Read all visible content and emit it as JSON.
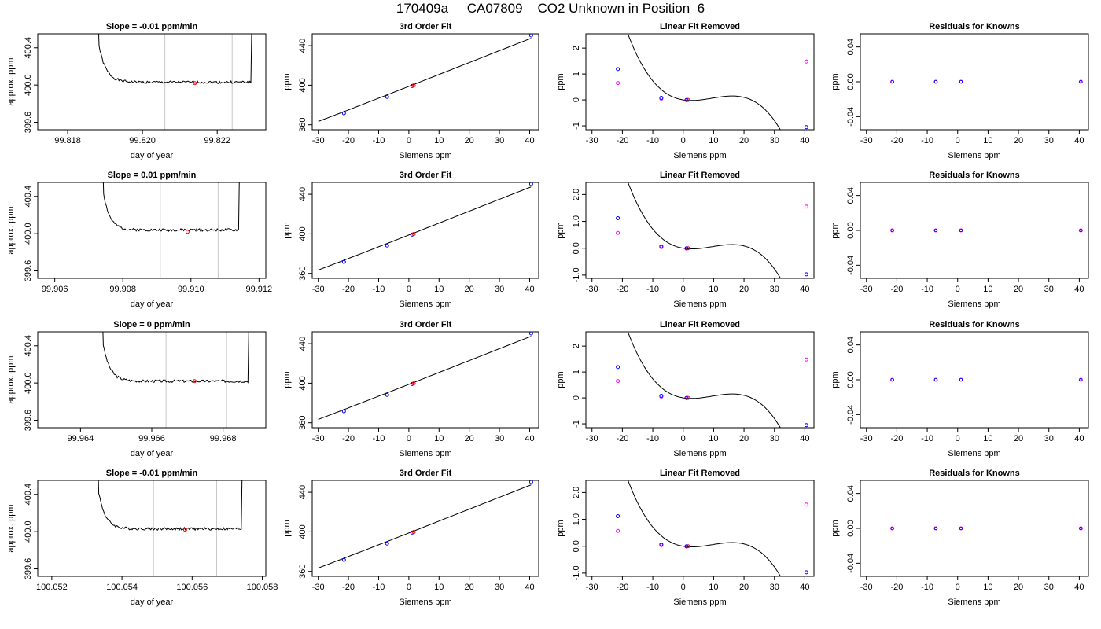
{
  "title": "170409a     CA07809    CO2 Unknown in Position  6",
  "colors": {
    "line": "#000000",
    "known": "#0000ff",
    "unknown": "#ff0000",
    "resid": "#ff00ff",
    "cursor": "#c8c8c8"
  },
  "chart_data": [
    {
      "type": "line",
      "title": "Slope =  -0.01  ppm/min",
      "xlabel": "day of year",
      "ylabel": "approx. ppm",
      "xlim": [
        99.8172,
        99.8233
      ],
      "ylim": [
        399.52,
        400.55
      ],
      "xticks": [
        99.818,
        99.82,
        99.822
      ],
      "xtick_labels": [
        "99.818",
        "99.820",
        "99.822"
      ],
      "yticks": [
        399.6,
        400.0,
        400.4
      ],
      "ytick_labels": [
        "399.6",
        "400.0",
        "400.4"
      ],
      "trace": {
        "x_start": 99.8187,
        "x_end": 99.8229,
        "level": 400.03,
        "seed": 1
      },
      "vlines": [
        99.8206,
        99.8224
      ],
      "marker": {
        "x": 99.8214,
        "y": 400.02
      }
    },
    {
      "type": "scatter",
      "title": "3rd Order Fit",
      "xlabel": "Siemens ppm",
      "ylabel": "ppm",
      "xlim": [
        -32,
        43
      ],
      "ylim": [
        355,
        452
      ],
      "xticks": [
        -30,
        -20,
        -10,
        0,
        10,
        20,
        30,
        40
      ],
      "xtick_labels": [
        "-30",
        "-20",
        "-10",
        "0",
        "10",
        "20",
        "30",
        "40"
      ],
      "yticks": [
        360,
        400,
        440
      ],
      "ytick_labels": [
        "360",
        "400",
        "440"
      ],
      "curve": {
        "intercept": 398.85,
        "slope": 1.2,
        "coeffs": [
          0,
          0,
          0.00036,
          -8.3e-06
        ],
        "x_from": -30,
        "x_to": 40.5
      },
      "knowns": [
        {
          "x": -21.5,
          "y": 371.6
        },
        {
          "x": -7.2,
          "y": 388.2
        },
        {
          "x": 1.1,
          "y": 399.2
        },
        {
          "x": 40.5,
          "y": 450.4
        }
      ],
      "unknown": {
        "x": 1.6,
        "y": 399.8
      }
    },
    {
      "type": "scatter",
      "title": "Linear Fit Removed",
      "xlabel": "Siemens ppm",
      "ylabel": "ppm",
      "xlim": [
        -32,
        43
      ],
      "ylim": [
        -1.15,
        2.55
      ],
      "xticks": [
        -30,
        -20,
        -10,
        0,
        10,
        20,
        30,
        40
      ],
      "xtick_labels": [
        "-30",
        "-20",
        "-10",
        "0",
        "10",
        "20",
        "30",
        "40"
      ],
      "yticks": [
        -1,
        0,
        1,
        2
      ],
      "ytick_labels": [
        "-1",
        "0",
        "1",
        "2"
      ],
      "curve": {
        "intercept": 0,
        "slope": -0.0185,
        "coeffs": [
          0,
          0,
          0.00405,
          -0.000144
        ],
        "x_from": -30,
        "x_to": 41
      },
      "knowns": [
        {
          "x": -21.5,
          "y": 1.19
        },
        {
          "x": -7.2,
          "y": 0.08
        },
        {
          "x": 1.1,
          "y": 0.0
        },
        {
          "x": 40.5,
          "y": -1.05
        }
      ],
      "unknown": {
        "x": 1.6,
        "y": 0.0
      },
      "resid_points": [
        {
          "x": -21.5,
          "y": 0.65
        },
        {
          "x": -7.2,
          "y": 0.05
        },
        {
          "x": 1.1,
          "y": -0.01
        },
        {
          "x": 40.5,
          "y": 1.48
        }
      ]
    },
    {
      "type": "scatter",
      "title": "Residuals for Knowns",
      "xlabel": "Siemens ppm",
      "ylabel": "ppm",
      "xlim": [
        -32,
        43
      ],
      "ylim": [
        -0.055,
        0.055
      ],
      "xticks": [
        -30,
        -20,
        -10,
        0,
        10,
        20,
        30,
        40
      ],
      "xtick_labels": [
        "-30",
        "-20",
        "-10",
        "0",
        "10",
        "20",
        "30",
        "40"
      ],
      "yticks": [
        -0.04,
        0,
        0.04
      ],
      "ytick_labels": [
        "-0.04",
        "0.00",
        "0.04"
      ],
      "resid_points": [
        {
          "x": -21.5,
          "y": 0
        },
        {
          "x": -7.2,
          "y": 0
        },
        {
          "x": 1.1,
          "y": 0
        },
        {
          "x": 40.5,
          "y": 0
        }
      ]
    },
    {
      "type": "line",
      "title": "Slope =  0.01  ppm/min",
      "xlabel": "day of year",
      "ylabel": "approx. ppm",
      "xlim": [
        99.9055,
        99.9122
      ],
      "ylim": [
        399.52,
        400.55
      ],
      "xticks": [
        99.906,
        99.908,
        99.91,
        99.912
      ],
      "xtick_labels": [
        "99.906",
        "99.908",
        "99.910",
        "99.912"
      ],
      "yticks": [
        399.6,
        400.0,
        400.4
      ],
      "ytick_labels": [
        "399.6",
        "400.0",
        "400.4"
      ],
      "trace": {
        "x_start": 99.9073,
        "x_end": 99.9114,
        "level": 400.04,
        "seed": 2
      },
      "vlines": [
        99.9091,
        99.9108
      ],
      "marker": {
        "x": 99.9099,
        "y": 400.02
      }
    },
    {
      "type": "scatter",
      "title": "3rd Order Fit",
      "xlabel": "Siemens ppm",
      "ylabel": "ppm",
      "xlim": [
        -32,
        43
      ],
      "ylim": [
        355,
        452
      ],
      "xticks": [
        -30,
        -20,
        -10,
        0,
        10,
        20,
        30,
        40
      ],
      "xtick_labels": [
        "-30",
        "-20",
        "-10",
        "0",
        "10",
        "20",
        "30",
        "40"
      ],
      "yticks": [
        360,
        400,
        440
      ],
      "ytick_labels": [
        "360",
        "400",
        "440"
      ],
      "curve": {
        "intercept": 398.85,
        "slope": 1.2,
        "coeffs": [
          0,
          0,
          0.00036,
          -8.3e-06
        ],
        "x_from": -30,
        "x_to": 40.5
      },
      "knowns": [
        {
          "x": -21.5,
          "y": 371.6
        },
        {
          "x": -7.2,
          "y": 388.2
        },
        {
          "x": 1.1,
          "y": 399.2
        },
        {
          "x": 40.5,
          "y": 450.4
        }
      ],
      "unknown": {
        "x": 1.6,
        "y": 399.8
      }
    },
    {
      "type": "scatter",
      "title": "Linear Fit Removed",
      "xlabel": "Siemens ppm",
      "ylabel": "ppm",
      "xlim": [
        -32,
        43
      ],
      "ylim": [
        -1.12,
        2.45
      ],
      "xticks": [
        -30,
        -20,
        -10,
        0,
        10,
        20,
        30,
        40
      ],
      "xtick_labels": [
        "-30",
        "-20",
        "-10",
        "0",
        "10",
        "20",
        "30",
        "40"
      ],
      "yticks": [
        -1.0,
        0.0,
        1.0,
        2.0
      ],
      "ytick_labels": [
        "-1.0",
        "0.0",
        "1.0",
        "2.0"
      ],
      "curve": {
        "intercept": 0,
        "slope": -0.0185,
        "coeffs": [
          0,
          0,
          0.0039,
          -0.000138
        ],
        "x_from": -30,
        "x_to": 41
      },
      "knowns": [
        {
          "x": -21.5,
          "y": 1.12
        },
        {
          "x": -7.2,
          "y": 0.07
        },
        {
          "x": 1.1,
          "y": 0.0
        },
        {
          "x": 40.5,
          "y": -0.97
        }
      ],
      "unknown": {
        "x": 1.6,
        "y": 0.0
      },
      "resid_points": [
        {
          "x": -21.5,
          "y": 0.57
        },
        {
          "x": -7.2,
          "y": 0.04
        },
        {
          "x": 1.1,
          "y": -0.01
        },
        {
          "x": 40.5,
          "y": 1.55
        }
      ]
    },
    {
      "type": "scatter",
      "title": "Residuals for Knowns",
      "xlabel": "Siemens ppm",
      "ylabel": "ppm",
      "xlim": [
        -32,
        43
      ],
      "ylim": [
        -0.055,
        0.055
      ],
      "xticks": [
        -30,
        -20,
        -10,
        0,
        10,
        20,
        30,
        40
      ],
      "xtick_labels": [
        "-30",
        "-20",
        "-10",
        "0",
        "10",
        "20",
        "30",
        "40"
      ],
      "yticks": [
        -0.04,
        0,
        0.04
      ],
      "ytick_labels": [
        "-0.04",
        "0.00",
        "0.04"
      ],
      "resid_points": [
        {
          "x": -21.5,
          "y": 0
        },
        {
          "x": -7.2,
          "y": 0
        },
        {
          "x": 1.1,
          "y": 0
        },
        {
          "x": 40.5,
          "y": 0
        }
      ]
    },
    {
      "type": "line",
      "title": "Slope =  0  ppm/min",
      "xlabel": "day of year",
      "ylabel": "approx. ppm",
      "xlim": [
        99.9628,
        99.9692
      ],
      "ylim": [
        399.52,
        400.55
      ],
      "xticks": [
        99.964,
        99.966,
        99.968
      ],
      "xtick_labels": [
        "99.964",
        "99.966",
        "99.968"
      ],
      "yticks": [
        399.6,
        400.0,
        400.4
      ],
      "ytick_labels": [
        "399.6",
        "400.0",
        "400.4"
      ],
      "trace": {
        "x_start": 99.9645,
        "x_end": 99.9687,
        "level": 400.02,
        "seed": 3
      },
      "vlines": [
        99.9664,
        99.9681
      ],
      "marker": {
        "x": 99.9672,
        "y": 400.02
      }
    },
    {
      "type": "scatter",
      "title": "3rd Order Fit",
      "xlabel": "Siemens ppm",
      "ylabel": "ppm",
      "xlim": [
        -32,
        43
      ],
      "ylim": [
        355,
        452
      ],
      "xticks": [
        -30,
        -20,
        -10,
        0,
        10,
        20,
        30,
        40
      ],
      "xtick_labels": [
        "-30",
        "-20",
        "-10",
        "0",
        "10",
        "20",
        "30",
        "40"
      ],
      "yticks": [
        360,
        400,
        440
      ],
      "ytick_labels": [
        "360",
        "400",
        "440"
      ],
      "curve": {
        "intercept": 398.85,
        "slope": 1.2,
        "coeffs": [
          0,
          0,
          0.00036,
          -8.3e-06
        ],
        "x_from": -30,
        "x_to": 40.5
      },
      "knowns": [
        {
          "x": -21.5,
          "y": 371.6
        },
        {
          "x": -7.2,
          "y": 388.2
        },
        {
          "x": 1.1,
          "y": 399.2
        },
        {
          "x": 40.5,
          "y": 450.4
        }
      ],
      "unknown": {
        "x": 1.6,
        "y": 399.8
      }
    },
    {
      "type": "scatter",
      "title": "Linear Fit Removed",
      "xlabel": "Siemens ppm",
      "ylabel": "ppm",
      "xlim": [
        -32,
        43
      ],
      "ylim": [
        -1.15,
        2.55
      ],
      "xticks": [
        -30,
        -20,
        -10,
        0,
        10,
        20,
        30,
        40
      ],
      "xtick_labels": [
        "-30",
        "-20",
        "-10",
        "0",
        "10",
        "20",
        "30",
        "40"
      ],
      "yticks": [
        -1,
        0,
        1,
        2
      ],
      "ytick_labels": [
        "-1",
        "0",
        "1",
        "2"
      ],
      "curve": {
        "intercept": 0,
        "slope": -0.0185,
        "coeffs": [
          0,
          0,
          0.00405,
          -0.000144
        ],
        "x_from": -30,
        "x_to": 41
      },
      "knowns": [
        {
          "x": -21.5,
          "y": 1.19
        },
        {
          "x": -7.2,
          "y": 0.08
        },
        {
          "x": 1.1,
          "y": 0.0
        },
        {
          "x": 40.5,
          "y": -1.05
        }
      ],
      "unknown": {
        "x": 1.6,
        "y": 0.0
      },
      "resid_points": [
        {
          "x": -21.5,
          "y": 0.65
        },
        {
          "x": -7.2,
          "y": 0.05
        },
        {
          "x": 1.1,
          "y": -0.01
        },
        {
          "x": 40.5,
          "y": 1.48
        }
      ]
    },
    {
      "type": "scatter",
      "title": "Residuals for Knowns",
      "xlabel": "Siemens ppm",
      "ylabel": "ppm",
      "xlim": [
        -32,
        43
      ],
      "ylim": [
        -0.055,
        0.055
      ],
      "xticks": [
        -30,
        -20,
        -10,
        0,
        10,
        20,
        30,
        40
      ],
      "xtick_labels": [
        "-30",
        "-20",
        "-10",
        "0",
        "10",
        "20",
        "30",
        "40"
      ],
      "yticks": [
        -0.04,
        0,
        0.04
      ],
      "ytick_labels": [
        "-0.04",
        "0.00",
        "0.04"
      ],
      "resid_points": [
        {
          "x": -21.5,
          "y": 0
        },
        {
          "x": -7.2,
          "y": 0
        },
        {
          "x": 1.1,
          "y": 0
        },
        {
          "x": 40.5,
          "y": 0
        }
      ]
    },
    {
      "type": "line",
      "title": "Slope =  -0.01  ppm/min",
      "xlabel": "day of year",
      "ylabel": "approx. ppm",
      "xlim": [
        100.0516,
        100.0581
      ],
      "ylim": [
        399.52,
        400.55
      ],
      "xticks": [
        100.052,
        100.054,
        100.056,
        100.058
      ],
      "xtick_labels": [
        "100.052",
        "100.054",
        "100.056",
        "100.058"
      ],
      "yticks": [
        399.6,
        400.0,
        400.4
      ],
      "ytick_labels": [
        "399.6",
        "400.0",
        "400.4"
      ],
      "trace": {
        "x_start": 100.0532,
        "x_end": 100.0574,
        "level": 400.03,
        "seed": 4
      },
      "vlines": [
        100.0549,
        100.0567
      ],
      "marker": {
        "x": 100.0558,
        "y": 400.02
      }
    },
    {
      "type": "scatter",
      "title": "3rd Order Fit",
      "xlabel": "Siemens ppm",
      "ylabel": "ppm",
      "xlim": [
        -32,
        43
      ],
      "ylim": [
        355,
        452
      ],
      "xticks": [
        -30,
        -20,
        -10,
        0,
        10,
        20,
        30,
        40
      ],
      "xtick_labels": [
        "-30",
        "-20",
        "-10",
        "0",
        "10",
        "20",
        "30",
        "40"
      ],
      "yticks": [
        360,
        400,
        440
      ],
      "ytick_labels": [
        "360",
        "400",
        "440"
      ],
      "curve": {
        "intercept": 398.85,
        "slope": 1.2,
        "coeffs": [
          0,
          0,
          0.00036,
          -8.3e-06
        ],
        "x_from": -30,
        "x_to": 40.5
      },
      "knowns": [
        {
          "x": -21.5,
          "y": 371.6
        },
        {
          "x": -7.2,
          "y": 388.2
        },
        {
          "x": 1.1,
          "y": 399.2
        },
        {
          "x": 40.5,
          "y": 450.4
        }
      ],
      "unknown": {
        "x": 1.6,
        "y": 399.8
      }
    },
    {
      "type": "scatter",
      "title": "Linear Fit Removed",
      "xlabel": "Siemens ppm",
      "ylabel": "ppm",
      "xlim": [
        -32,
        43
      ],
      "ylim": [
        -1.12,
        2.45
      ],
      "xticks": [
        -30,
        -20,
        -10,
        0,
        10,
        20,
        30,
        40
      ],
      "xtick_labels": [
        "-30",
        "-20",
        "-10",
        "0",
        "10",
        "20",
        "30",
        "40"
      ],
      "yticks": [
        -1.0,
        0.0,
        1.0,
        2.0
      ],
      "ytick_labels": [
        "-1.0",
        "0.0",
        "1.0",
        "2.0"
      ],
      "curve": {
        "intercept": 0,
        "slope": -0.0185,
        "coeffs": [
          0,
          0,
          0.0039,
          -0.000138
        ],
        "x_from": -30,
        "x_to": 41
      },
      "knowns": [
        {
          "x": -21.5,
          "y": 1.12
        },
        {
          "x": -7.2,
          "y": 0.07
        },
        {
          "x": 1.1,
          "y": 0.0
        },
        {
          "x": 40.5,
          "y": -0.97
        }
      ],
      "unknown": {
        "x": 1.6,
        "y": 0.0
      },
      "resid_points": [
        {
          "x": -21.5,
          "y": 0.57
        },
        {
          "x": -7.2,
          "y": 0.04
        },
        {
          "x": 1.1,
          "y": -0.01
        },
        {
          "x": 40.5,
          "y": 1.55
        }
      ]
    },
    {
      "type": "scatter",
      "title": "Residuals for Knowns",
      "xlabel": "Siemens ppm",
      "ylabel": "ppm",
      "xlim": [
        -32,
        43
      ],
      "ylim": [
        -0.055,
        0.055
      ],
      "xticks": [
        -30,
        -20,
        -10,
        0,
        10,
        20,
        30,
        40
      ],
      "xtick_labels": [
        "-30",
        "-20",
        "-10",
        "0",
        "10",
        "20",
        "30",
        "40"
      ],
      "yticks": [
        -0.04,
        0,
        0.04
      ],
      "ytick_labels": [
        "-0.04",
        "0.00",
        "0.04"
      ],
      "resid_points": [
        {
          "x": -21.5,
          "y": 0
        },
        {
          "x": -7.2,
          "y": 0
        },
        {
          "x": 1.1,
          "y": 0
        },
        {
          "x": 40.5,
          "y": 0
        }
      ]
    }
  ]
}
